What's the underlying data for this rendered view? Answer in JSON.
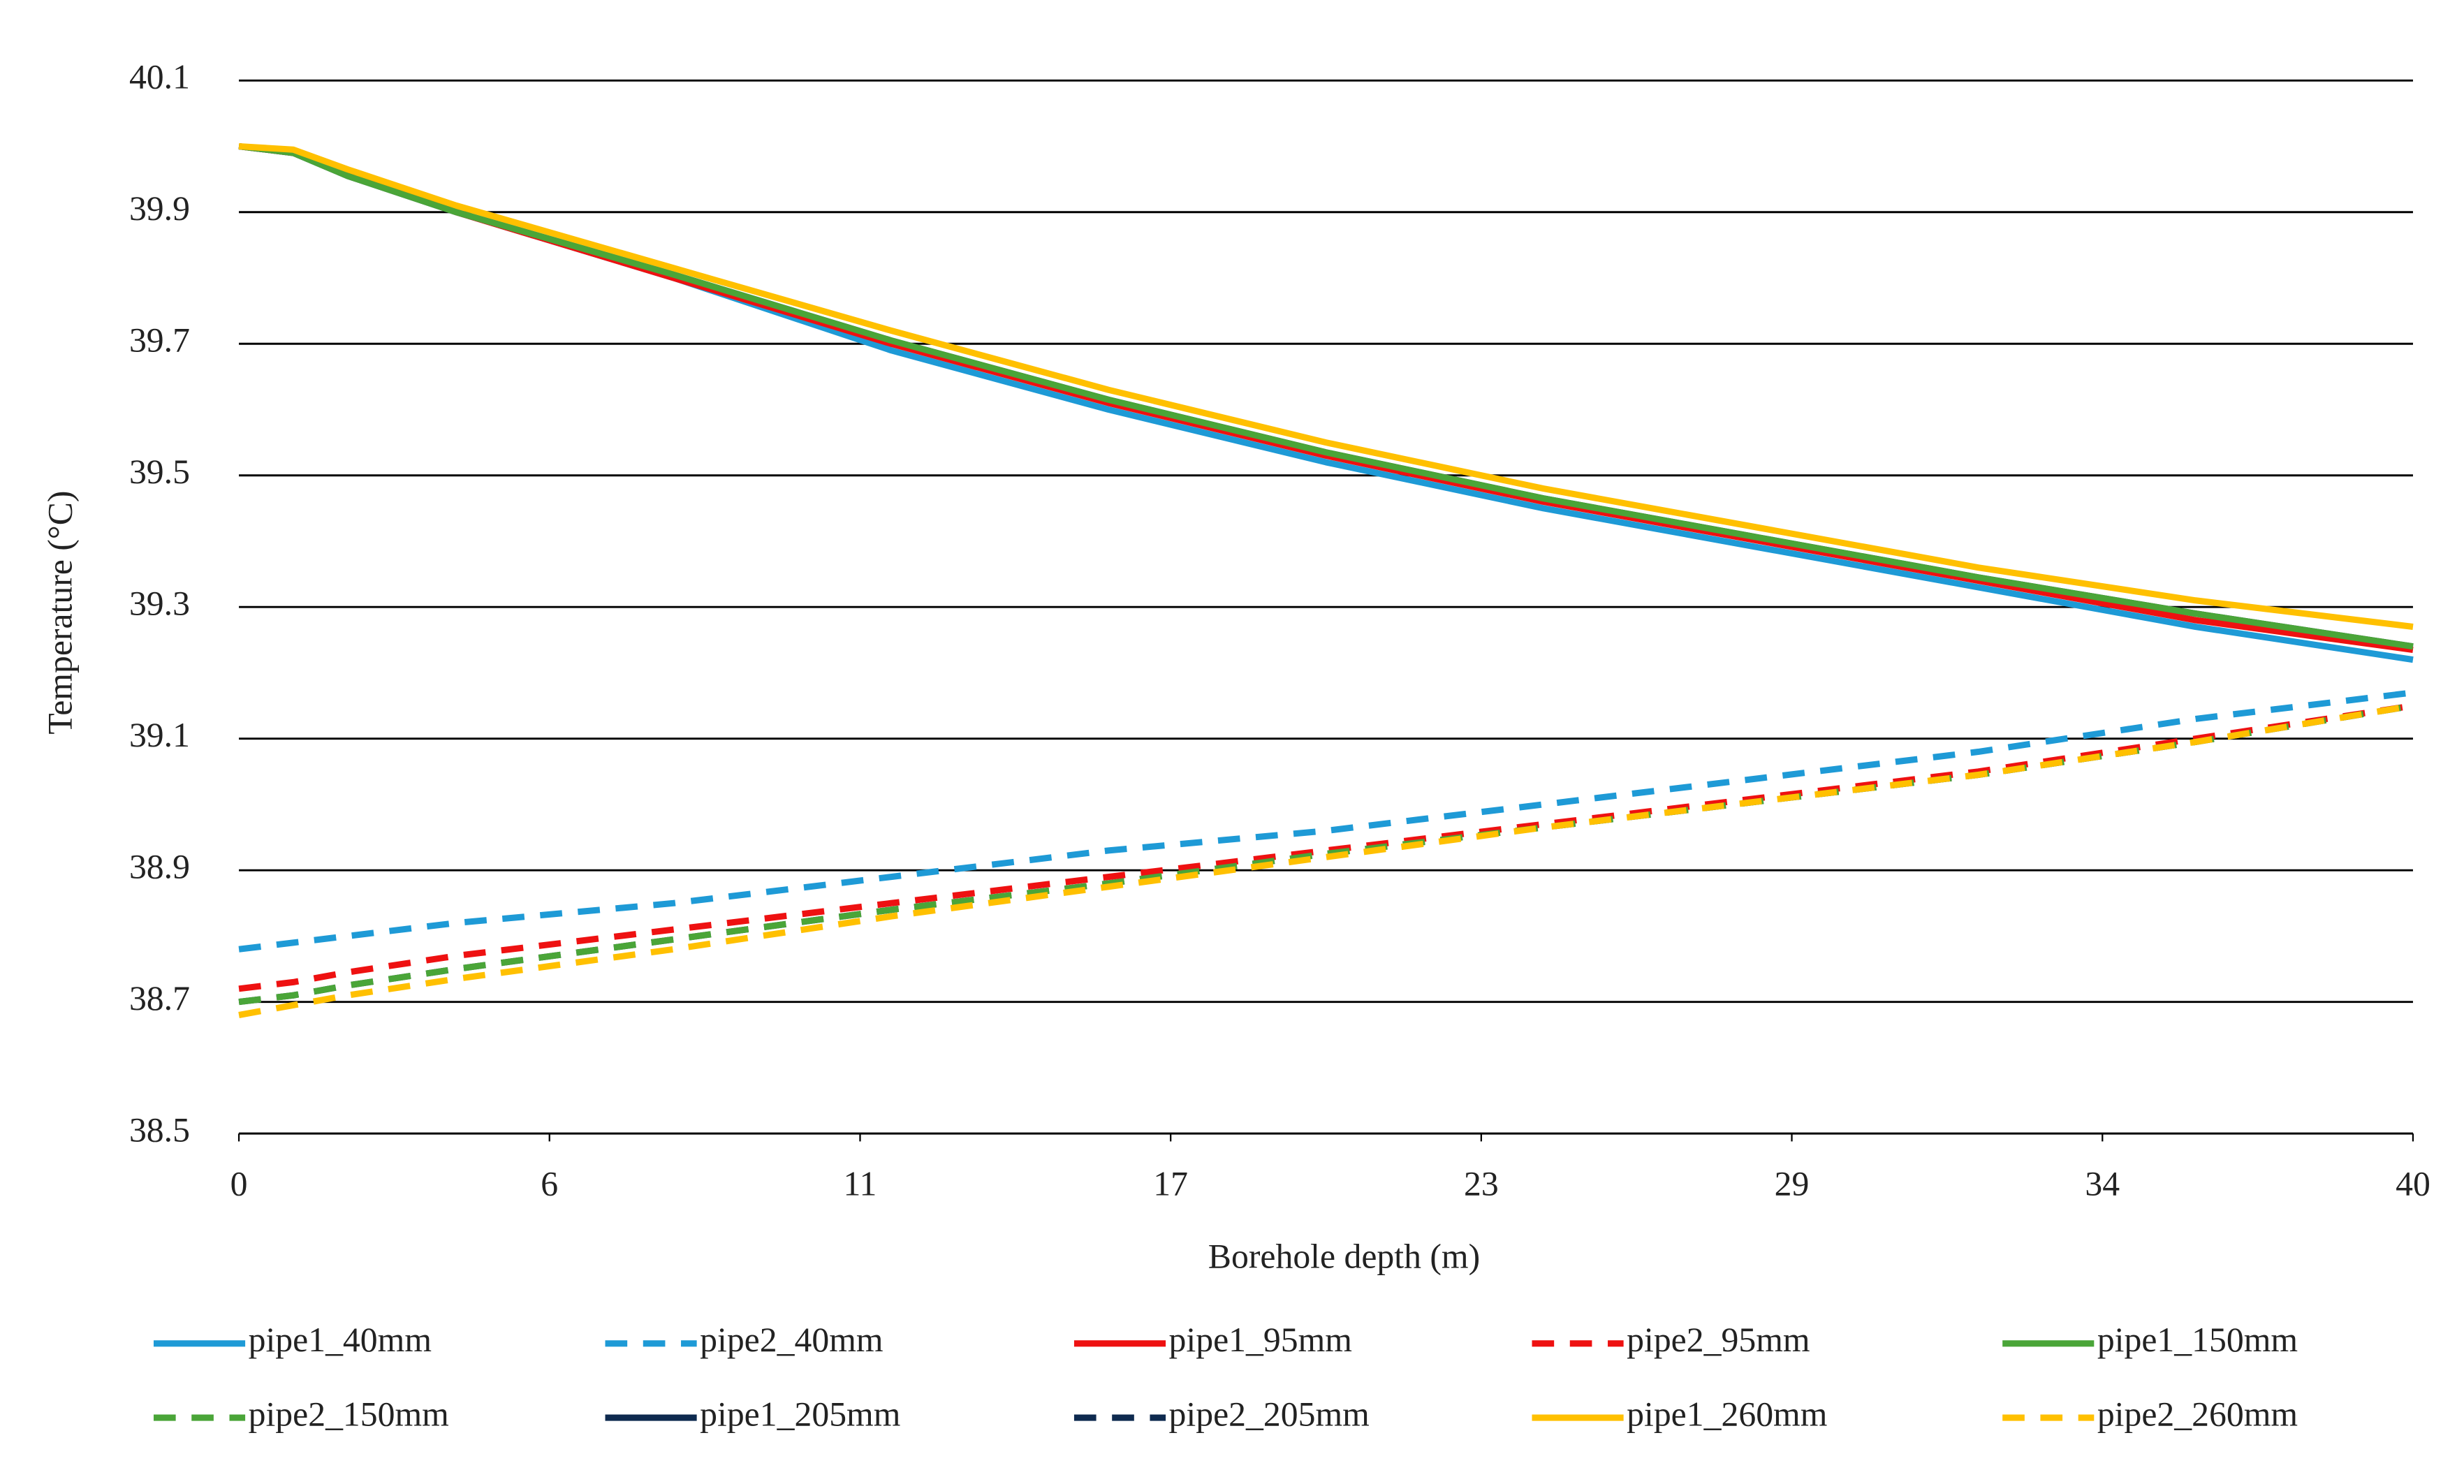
{
  "chart_data": {
    "type": "line",
    "x_label": "Borehole depth (m)",
    "y_label": "Temperature (°C)",
    "x": [
      0,
      1,
      2,
      4,
      8,
      12,
      16,
      20,
      24,
      28,
      32,
      36,
      40
    ],
    "xlim": [
      0,
      40
    ],
    "xticks": [
      0,
      {
        "value": 5.714,
        "label": "6"
      },
      {
        "value": 11.429,
        "label": "11"
      },
      {
        "value": 17.143,
        "label": "17"
      },
      {
        "value": 22.857,
        "label": "23"
      },
      {
        "value": 28.571,
        "label": "29"
      },
      {
        "value": 34.286,
        "label": "34"
      },
      40
    ],
    "ylim": [
      38.5,
      40.1
    ],
    "yticks": [
      38.5,
      38.7,
      38.9,
      39.1,
      39.3,
      39.5,
      39.7,
      39.9,
      40.1
    ],
    "grid": true,
    "legend": "bottom",
    "series": [
      {
        "name": "pipe1_40mm",
        "color": "#1e9ad6",
        "line_style": "solid",
        "values": [
          40.0,
          39.99,
          39.96,
          39.9,
          39.8,
          39.69,
          39.6,
          39.52,
          39.45,
          39.39,
          39.33,
          39.27,
          39.22
        ]
      },
      {
        "name": "pipe2_40mm",
        "color": "#1e9ad6",
        "line_style": "dashed",
        "values": [
          38.78,
          38.79,
          38.8,
          38.82,
          38.85,
          38.89,
          38.93,
          38.96,
          39.0,
          39.04,
          39.08,
          39.13,
          39.17
        ]
      },
      {
        "name": "pipe1_95mm",
        "color": "#ee1111",
        "line_style": "solid",
        "values": [
          40.0,
          39.99,
          39.96,
          39.9,
          39.8,
          39.7,
          39.61,
          39.53,
          39.46,
          39.4,
          39.34,
          39.28,
          39.235
        ]
      },
      {
        "name": "pipe2_95mm",
        "color": "#ee1111",
        "line_style": "dashed",
        "values": [
          38.72,
          38.73,
          38.745,
          38.77,
          38.81,
          38.85,
          38.89,
          38.93,
          38.97,
          39.01,
          39.05,
          39.1,
          39.15
        ]
      },
      {
        "name": "pipe1_150mm",
        "color": "#4aa538",
        "line_style": "solid",
        "values": [
          40.0,
          39.99,
          39.955,
          39.9,
          39.805,
          39.705,
          39.615,
          39.535,
          39.465,
          39.405,
          39.345,
          39.29,
          39.24
        ]
      },
      {
        "name": "pipe2_150mm",
        "color": "#4aa538",
        "line_style": "dashed",
        "values": [
          38.7,
          38.71,
          38.725,
          38.75,
          38.795,
          38.84,
          38.88,
          38.925,
          38.965,
          39.005,
          39.045,
          39.095,
          39.15
        ]
      },
      {
        "name": "pipe1_205mm",
        "color": "#0e2a4f",
        "line_style": "solid",
        "values": [
          40.0,
          39.99,
          39.955,
          39.9,
          39.805,
          39.705,
          39.615,
          39.535,
          39.465,
          39.405,
          39.345,
          39.29,
          39.24
        ]
      },
      {
        "name": "pipe2_205mm",
        "color": "#0e2a4f",
        "line_style": "dashed",
        "values": [
          38.7,
          38.71,
          38.725,
          38.75,
          38.795,
          38.84,
          38.88,
          38.925,
          38.965,
          39.005,
          39.045,
          39.095,
          39.15
        ]
      },
      {
        "name": "pipe1_260mm",
        "color": "#ffc000",
        "line_style": "solid",
        "values": [
          40.0,
          39.995,
          39.965,
          39.91,
          39.815,
          39.72,
          39.63,
          39.55,
          39.48,
          39.42,
          39.36,
          39.31,
          39.27
        ]
      },
      {
        "name": "pipe2_260mm",
        "color": "#ffc000",
        "line_style": "dashed",
        "values": [
          38.68,
          38.695,
          38.71,
          38.735,
          38.78,
          38.83,
          38.875,
          38.92,
          38.965,
          39.005,
          39.045,
          39.095,
          39.15
        ]
      }
    ]
  }
}
